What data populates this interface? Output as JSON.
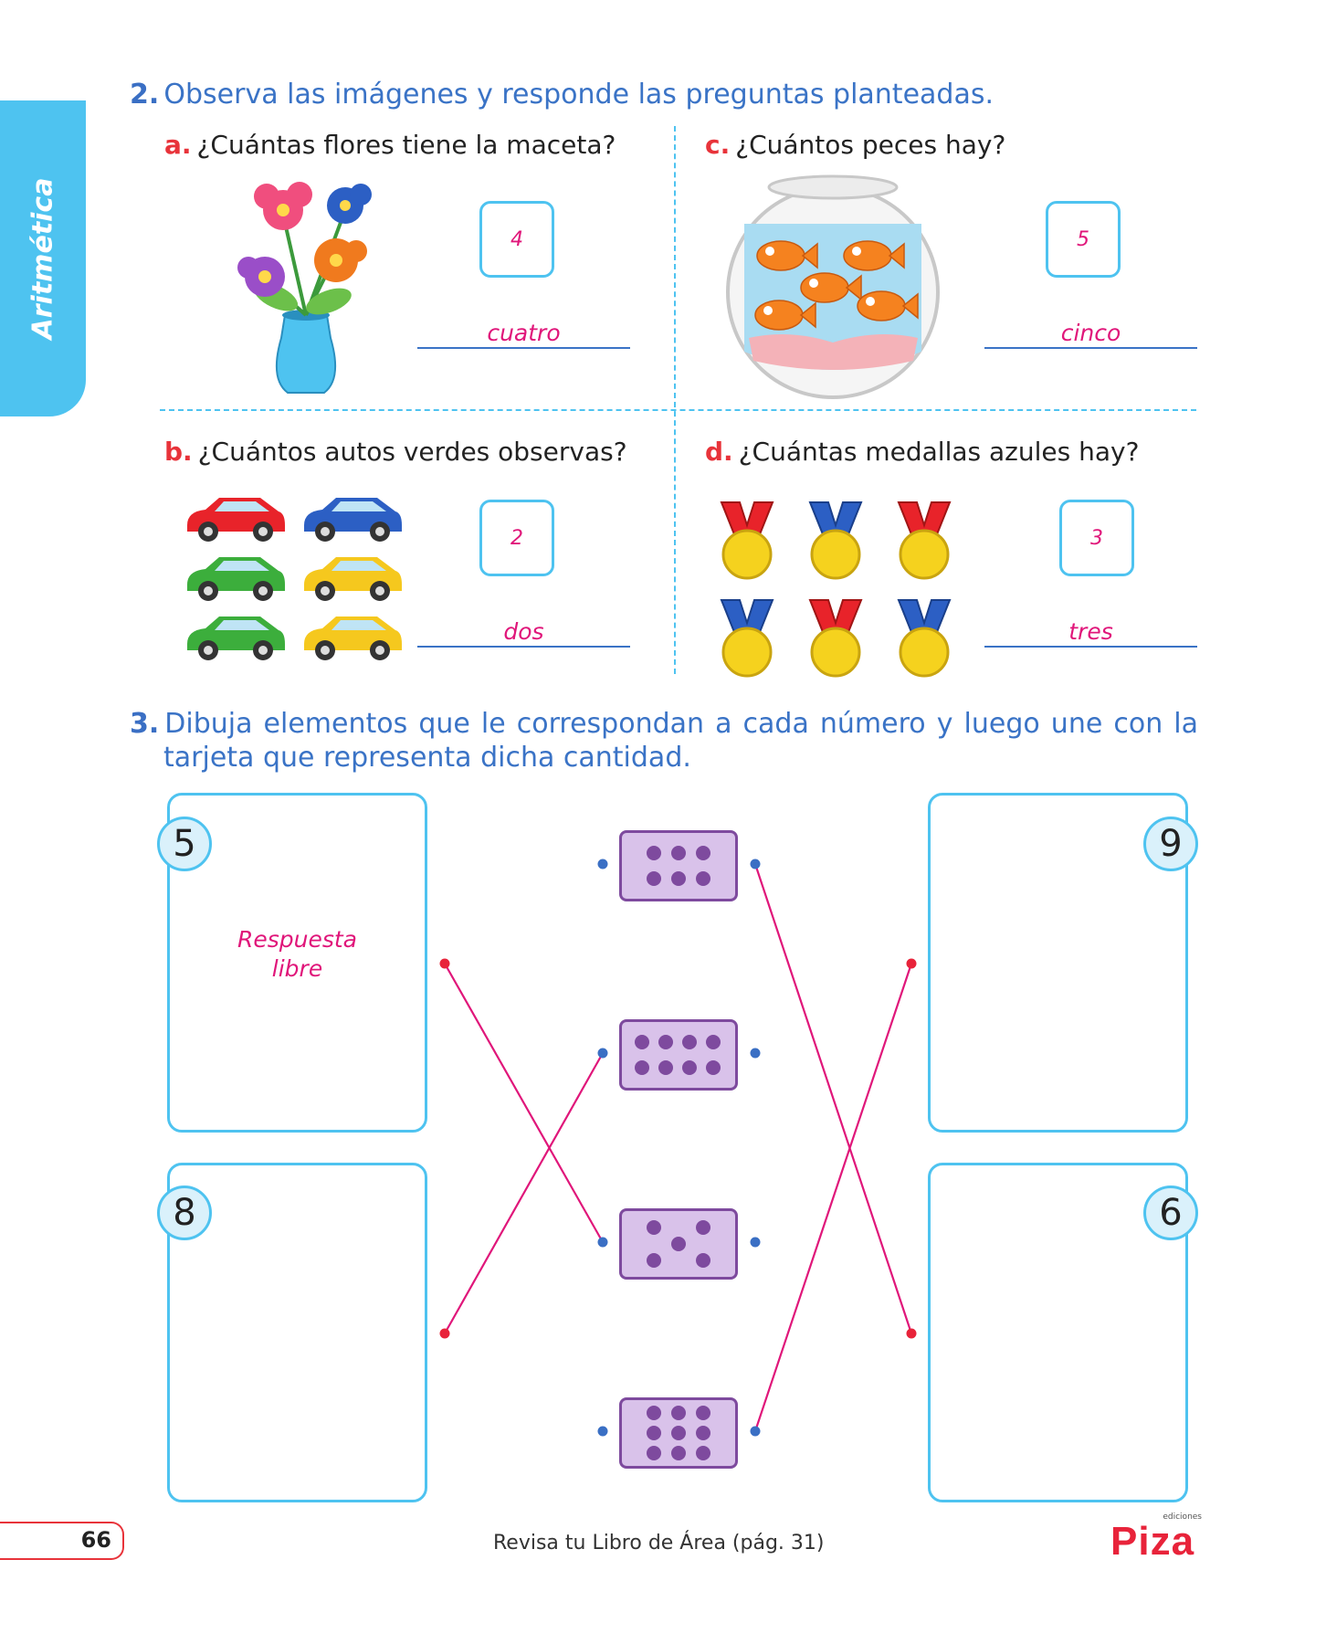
{
  "sidebar": {
    "label": "Aritmética"
  },
  "section2": {
    "number": "2.",
    "instruction": "Observa las imágenes y responde las preguntas planteadas.",
    "questions": [
      {
        "letter": "a.",
        "text": "¿Cuántas flores tiene la maceta?",
        "answer_number": "4",
        "answer_word": "cuatro"
      },
      {
        "letter": "c.",
        "text": "¿Cuántos peces hay?",
        "answer_number": "5",
        "answer_word": "cinco"
      },
      {
        "letter": "b.",
        "text": "¿Cuántos autos verdes observas?",
        "answer_number": "2",
        "answer_word": "dos"
      },
      {
        "letter": "d.",
        "text": "¿Cuántas medallas  azules hay?",
        "answer_number": "3",
        "answer_word": "tres"
      }
    ]
  },
  "section3": {
    "number": "3.",
    "instruction_line1": "Dibuja elementos que le correspondan a cada número y luego une con la",
    "instruction_line2": "tarjeta que representa dicha cantidad.",
    "left_boxes": [
      {
        "number": "5",
        "answer": "Respuesta libre"
      },
      {
        "number": "8"
      }
    ],
    "right_boxes": [
      {
        "number": "9"
      },
      {
        "number": "6"
      }
    ],
    "dot_cards": [
      6,
      8,
      5,
      9
    ],
    "colors": {
      "line": "#e0167a",
      "left_dot": "#e8333a",
      "card_dot": "#3a6fc4",
      "card_fill": "#d9c2ea",
      "dot_fill": "#7e4a9e"
    }
  },
  "footer": {
    "page_number": "66",
    "reference": "Revisa tu Libro de Área (pág. 31)",
    "brand_small": "ediciones",
    "brand": "Piza"
  }
}
